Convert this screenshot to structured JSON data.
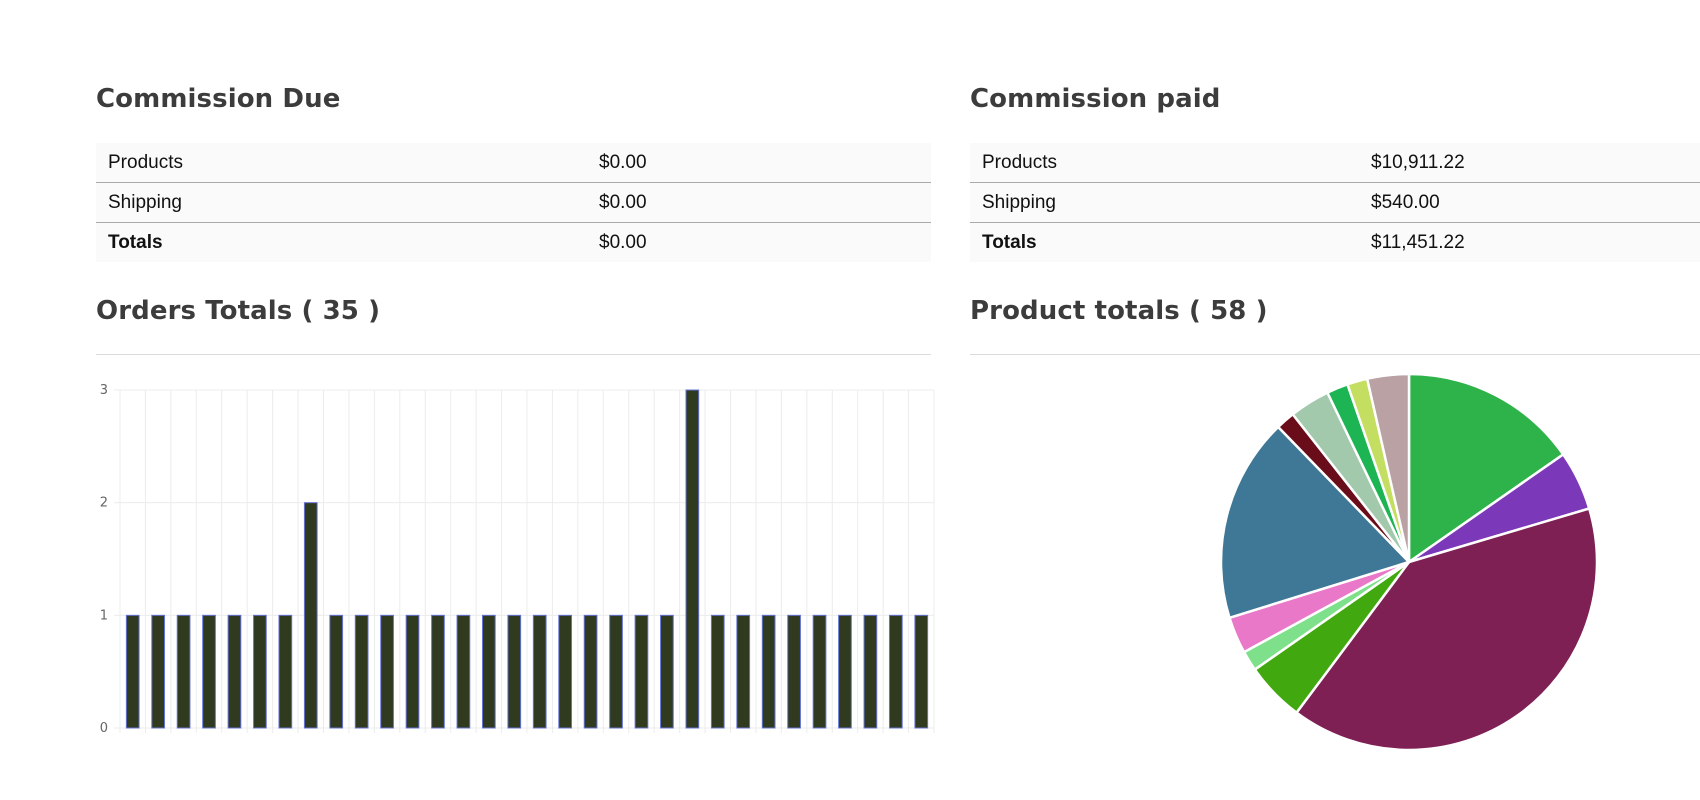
{
  "commission_due": {
    "title": "Commission Due",
    "rows": [
      {
        "label": "Products",
        "value": "$0.00"
      },
      {
        "label": "Shipping",
        "value": "$0.00"
      },
      {
        "label": "Totals",
        "value": "$0.00"
      }
    ]
  },
  "commission_paid": {
    "title": "Commission paid",
    "rows": [
      {
        "label": "Products",
        "value": "$10,911.22"
      },
      {
        "label": "Shipping",
        "value": "$540.00"
      },
      {
        "label": "Totals",
        "value": "$11,451.22"
      }
    ]
  },
  "orders_totals": {
    "title": "Orders Totals ( 35 )"
  },
  "product_totals": {
    "title": "Product totals ( 58 )"
  },
  "chart_data": [
    {
      "type": "bar",
      "values": [
        1,
        1,
        1,
        1,
        1,
        1,
        1,
        2,
        1,
        1,
        1,
        1,
        1,
        1,
        1,
        1,
        1,
        1,
        1,
        1,
        1,
        1,
        3,
        1,
        1,
        1,
        1,
        1,
        1,
        1,
        1,
        1
      ],
      "ylim": [
        0,
        3
      ],
      "yticks": [
        "0",
        "1",
        "2",
        "3"
      ],
      "bar_color": "#2f3a1f",
      "bar_border": "#6674d6",
      "grid": true
    },
    {
      "type": "pie",
      "slices": [
        {
          "value": 15.0,
          "color": "#2eb24a"
        },
        {
          "value": 5.0,
          "color": "#7b38b8"
        },
        {
          "value": 39.0,
          "color": "#7e2054"
        },
        {
          "value": 5.0,
          "color": "#41a80f"
        },
        {
          "value": 1.7,
          "color": "#7ee08a"
        },
        {
          "value": 3.1,
          "color": "#ea78c8"
        },
        {
          "value": 17.2,
          "color": "#3f7896"
        },
        {
          "value": 1.6,
          "color": "#6a0d1a"
        },
        {
          "value": 3.4,
          "color": "#a3c9ad"
        },
        {
          "value": 1.8,
          "color": "#1db554"
        },
        {
          "value": 1.7,
          "color": "#c4de62"
        },
        {
          "value": 3.5,
          "color": "#b9a1a4"
        }
      ]
    }
  ]
}
